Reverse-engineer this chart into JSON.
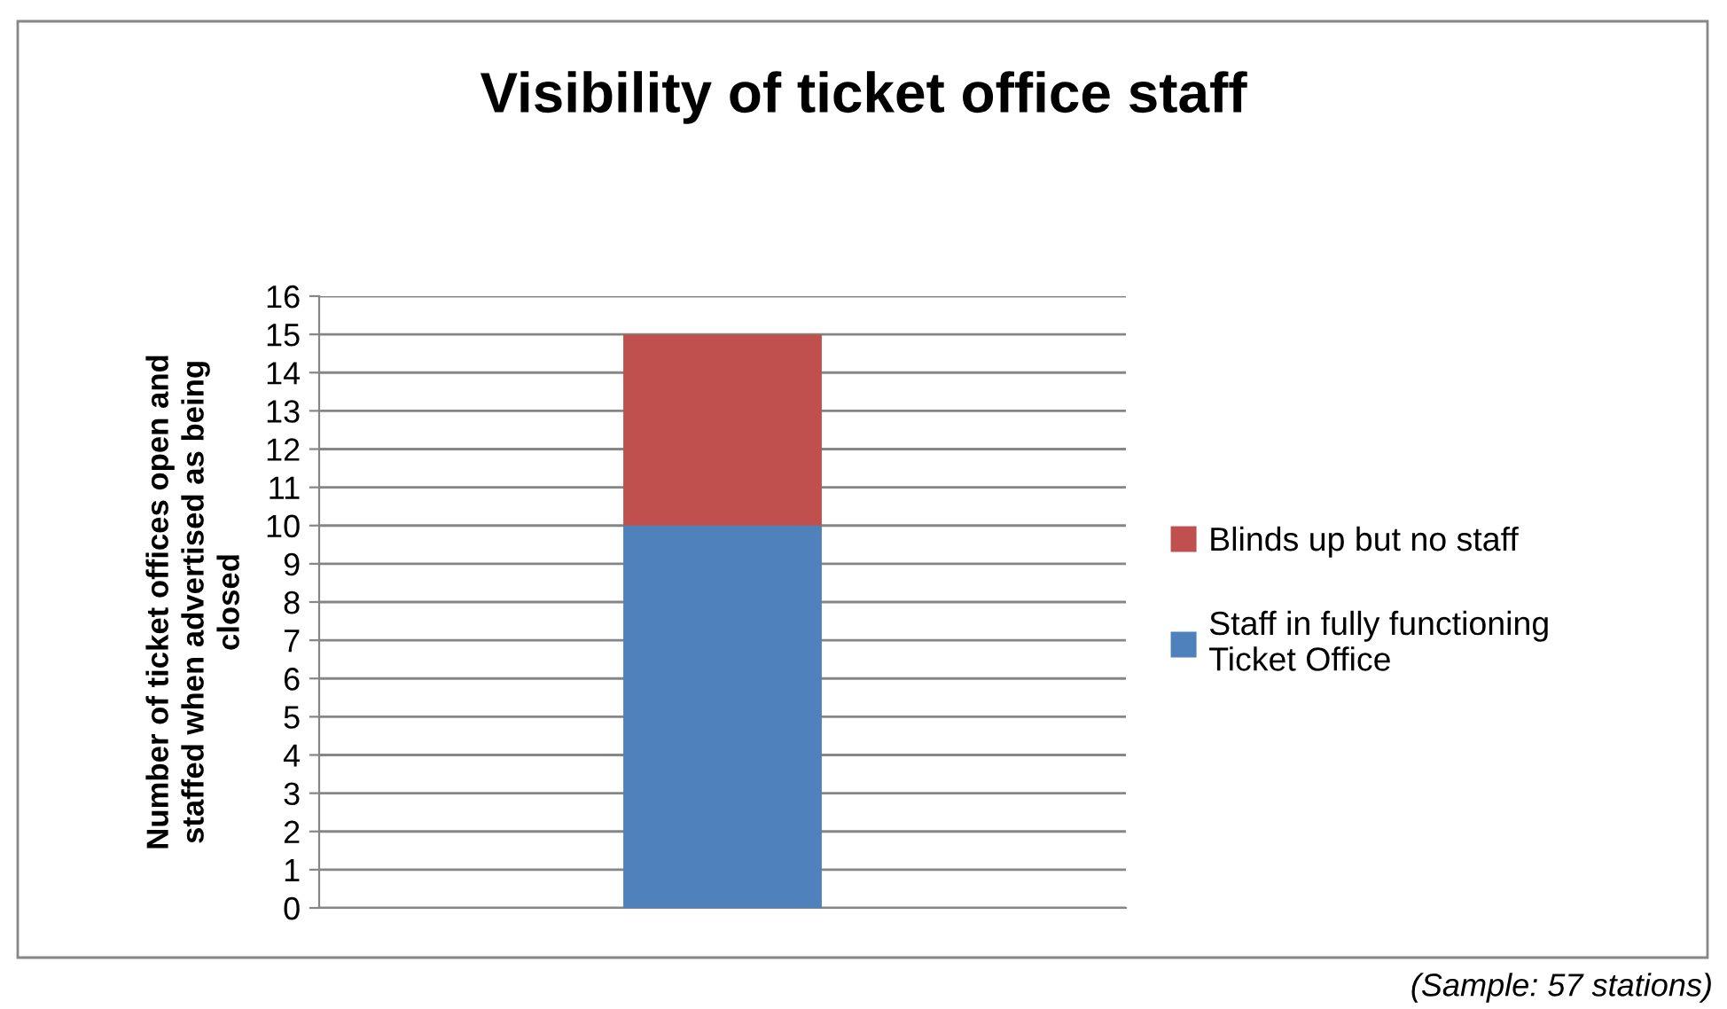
{
  "chart_data": {
    "type": "bar",
    "stacked": true,
    "title": "Visibility of ticket office staff",
    "ylabel": "Number of ticket offices open and\nstaffed when advertised as being\nclosed",
    "categories": [
      null
    ],
    "series": [
      {
        "name": "Staff in fully functioning\nTicket Office",
        "color": "#4f81bd",
        "values": [
          10
        ]
      },
      {
        "name": "Blinds up but no staff",
        "color": "#c0504d",
        "values": [
          5
        ]
      }
    ],
    "ylim": [
      0,
      16
    ],
    "yticks": [
      0,
      1,
      2,
      3,
      4,
      5,
      6,
      7,
      8,
      9,
      10,
      11,
      12,
      13,
      14,
      15,
      16
    ],
    "grid": "y",
    "legend": "right",
    "annotations": [
      "(Sample: 57 stations)"
    ]
  }
}
